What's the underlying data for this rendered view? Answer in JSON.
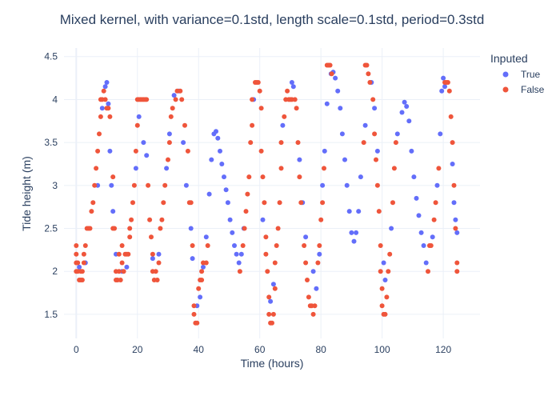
{
  "chart_data": {
    "type": "scatter",
    "title": "Mixed kernel, with variance=0.1std, length scale=0.1std, period=0.3std",
    "xlabel": "Time (hours)",
    "ylabel": "Tide height (m)",
    "xlim": [
      -4,
      132
    ],
    "ylim": [
      1.22,
      4.6
    ],
    "xticks": [
      0,
      20,
      40,
      60,
      80,
      100,
      120
    ],
    "yticks": [
      1.5,
      2,
      2.5,
      3,
      3.5,
      4,
      4.5
    ],
    "grid": true,
    "legend": {
      "title": "Inputed",
      "placement": "top-right"
    },
    "series": [
      {
        "name": "True",
        "color": "#636efa",
        "points": [
          [
            1.0,
            2.05
          ],
          [
            3.0,
            2.1
          ],
          [
            7.0,
            3.0
          ],
          [
            8.5,
            3.9
          ],
          [
            9.5,
            4.15
          ],
          [
            10.0,
            4.2
          ],
          [
            10.5,
            3.95
          ],
          [
            11.0,
            3.4
          ],
          [
            11.5,
            3.0
          ],
          [
            12.0,
            2.7
          ],
          [
            13.0,
            2.2
          ],
          [
            15.0,
            2.0
          ],
          [
            16.5,
            2.05
          ],
          [
            19.5,
            3.2
          ],
          [
            20.5,
            3.8
          ],
          [
            22.0,
            3.5
          ],
          [
            23.0,
            3.35
          ],
          [
            25.0,
            2.15
          ],
          [
            27.0,
            2.2
          ],
          [
            29.5,
            3.2
          ],
          [
            30.5,
            3.6
          ],
          [
            32.0,
            4.05
          ],
          [
            33.5,
            4.1
          ],
          [
            35.0,
            3.5
          ],
          [
            36.0,
            3.0
          ],
          [
            37.5,
            2.5
          ],
          [
            38.0,
            2.15
          ],
          [
            39.5,
            1.6
          ],
          [
            40.5,
            1.7
          ],
          [
            41.5,
            2.05
          ],
          [
            42.5,
            2.4
          ],
          [
            43.5,
            2.9
          ],
          [
            44.2,
            3.3
          ],
          [
            45.0,
            3.6
          ],
          [
            45.7,
            3.63
          ],
          [
            46.3,
            3.55
          ],
          [
            47.0,
            3.4
          ],
          [
            47.6,
            3.25
          ],
          [
            48.3,
            3.1
          ],
          [
            49.0,
            2.95
          ],
          [
            49.6,
            2.8
          ],
          [
            50.3,
            2.6
          ],
          [
            51.0,
            2.45
          ],
          [
            51.7,
            2.3
          ],
          [
            52.4,
            2.2
          ],
          [
            53.2,
            2.1
          ],
          [
            54.0,
            2.2
          ],
          [
            54.8,
            2.5
          ],
          [
            58.0,
            4.0
          ],
          [
            61.0,
            2.6
          ],
          [
            63.5,
            1.65
          ],
          [
            64.5,
            1.85
          ],
          [
            67.5,
            3.7
          ],
          [
            70.5,
            4.2
          ],
          [
            71.0,
            4.15
          ],
          [
            73.0,
            3.3
          ],
          [
            74.0,
            2.8
          ],
          [
            75.0,
            2.4
          ],
          [
            77.5,
            2.0
          ],
          [
            78.5,
            1.8
          ],
          [
            79.5,
            2.2
          ],
          [
            80.5,
            3.0
          ],
          [
            81.2,
            3.4
          ],
          [
            82.0,
            3.95
          ],
          [
            83.3,
            4.3
          ],
          [
            84.0,
            4.32
          ],
          [
            84.7,
            4.25
          ],
          [
            85.5,
            4.1
          ],
          [
            86.3,
            3.9
          ],
          [
            87.0,
            3.6
          ],
          [
            87.8,
            3.3
          ],
          [
            88.5,
            3.0
          ],
          [
            89.3,
            2.7
          ],
          [
            90.0,
            2.45
          ],
          [
            90.8,
            2.35
          ],
          [
            91.5,
            2.45
          ],
          [
            92.3,
            2.7
          ],
          [
            93.0,
            3.1
          ],
          [
            94.5,
            3.7
          ],
          [
            96.5,
            4.2
          ],
          [
            97.5,
            3.9
          ],
          [
            98.5,
            3.4
          ],
          [
            100.5,
            2.1
          ],
          [
            101.0,
            1.9
          ],
          [
            103.0,
            2.5
          ],
          [
            105.0,
            3.6
          ],
          [
            106.5,
            3.85
          ],
          [
            107.3,
            3.97
          ],
          [
            108.0,
            3.92
          ],
          [
            108.8,
            3.75
          ],
          [
            109.6,
            3.4
          ],
          [
            110.4,
            3.1
          ],
          [
            111.2,
            2.85
          ],
          [
            112.0,
            2.65
          ],
          [
            112.8,
            2.45
          ],
          [
            113.6,
            2.3
          ],
          [
            114.4,
            2.1
          ],
          [
            116.5,
            2.4
          ],
          [
            118.0,
            3.0
          ],
          [
            119.0,
            3.6
          ],
          [
            119.5,
            4.1
          ],
          [
            120.0,
            4.25
          ],
          [
            120.5,
            4.15
          ],
          [
            123.0,
            3.25
          ],
          [
            123.5,
            2.8
          ],
          [
            124.0,
            2.6
          ],
          [
            124.5,
            2.45
          ]
        ]
      },
      {
        "name": "False",
        "color": "#ef553b",
        "points": [
          [
            0.0,
            2.3
          ],
          [
            0.0,
            2.2
          ],
          [
            0.0,
            2.1
          ],
          [
            0.0,
            2.0
          ],
          [
            0.5,
            2.1
          ],
          [
            0.5,
            2.0
          ],
          [
            1.0,
            1.9
          ],
          [
            1.5,
            2.0
          ],
          [
            1.5,
            1.9
          ],
          [
            2.0,
            1.9
          ],
          [
            2.0,
            2.0
          ],
          [
            2.5,
            2.1
          ],
          [
            2.5,
            2.2
          ],
          [
            3.0,
            2.3
          ],
          [
            3.5,
            2.5
          ],
          [
            4.0,
            2.5
          ],
          [
            4.5,
            2.5
          ],
          [
            5.0,
            2.7
          ],
          [
            5.5,
            2.8
          ],
          [
            6.0,
            3.0
          ],
          [
            6.5,
            3.2
          ],
          [
            7.0,
            3.4
          ],
          [
            7.5,
            3.6
          ],
          [
            8.0,
            3.8
          ],
          [
            8.0,
            4.0
          ],
          [
            8.5,
            4.0
          ],
          [
            9.0,
            4.1
          ],
          [
            9.5,
            4.0
          ],
          [
            10.0,
            3.9
          ],
          [
            10.5,
            3.9
          ],
          [
            11.0,
            3.8
          ],
          [
            12.0,
            3.1
          ],
          [
            12.0,
            2.5
          ],
          [
            12.5,
            2.5
          ],
          [
            13.0,
            2.0
          ],
          [
            13.0,
            1.9
          ],
          [
            13.5,
            1.9
          ],
          [
            14.0,
            2.0
          ],
          [
            14.0,
            2.2
          ],
          [
            14.5,
            1.9
          ],
          [
            15.0,
            2.3
          ],
          [
            15.0,
            2.1
          ],
          [
            15.5,
            2.0
          ],
          [
            16.0,
            2.2
          ],
          [
            16.5,
            2.2
          ],
          [
            17.0,
            2.2
          ],
          [
            17.5,
            2.4
          ],
          [
            17.5,
            2.5
          ],
          [
            18.0,
            2.6
          ],
          [
            18.5,
            2.8
          ],
          [
            19.0,
            3.0
          ],
          [
            19.5,
            3.4
          ],
          [
            20.0,
            3.7
          ],
          [
            20.0,
            4.0
          ],
          [
            20.5,
            4.0
          ],
          [
            21.0,
            4.0
          ],
          [
            21.5,
            4.0
          ],
          [
            22.0,
            4.0
          ],
          [
            22.5,
            4.0
          ],
          [
            23.0,
            4.0
          ],
          [
            23.5,
            3.0
          ],
          [
            24.0,
            2.6
          ],
          [
            24.5,
            2.4
          ],
          [
            25.0,
            2.0
          ],
          [
            25.0,
            2.2
          ],
          [
            25.5,
            1.9
          ],
          [
            26.0,
            2.0
          ],
          [
            26.5,
            1.9
          ],
          [
            27.0,
            2.1
          ],
          [
            27.5,
            2.5
          ],
          [
            28.0,
            2.6
          ],
          [
            28.5,
            2.8
          ],
          [
            29.0,
            3.0
          ],
          [
            30.0,
            3.3
          ],
          [
            30.5,
            3.5
          ],
          [
            31.0,
            3.8
          ],
          [
            31.5,
            3.9
          ],
          [
            32.5,
            4.0
          ],
          [
            33.0,
            4.1
          ],
          [
            34.0,
            4.1
          ],
          [
            34.5,
            4.0
          ],
          [
            35.5,
            3.7
          ],
          [
            36.5,
            3.4
          ],
          [
            37.0,
            2.8
          ],
          [
            37.5,
            2.8
          ],
          [
            38.0,
            2.3
          ],
          [
            38.5,
            1.6
          ],
          [
            38.5,
            1.5
          ],
          [
            39.0,
            1.4
          ],
          [
            39.5,
            1.4
          ],
          [
            40.0,
            1.8
          ],
          [
            40.5,
            1.9
          ],
          [
            41.0,
            2.0
          ],
          [
            41.0,
            1.9
          ],
          [
            41.5,
            2.1
          ],
          [
            42.5,
            2.1
          ],
          [
            43.0,
            2.3
          ],
          [
            53.5,
            2.0
          ],
          [
            54.5,
            2.3
          ],
          [
            55.0,
            2.5
          ],
          [
            55.5,
            2.7
          ],
          [
            56.0,
            2.9
          ],
          [
            56.5,
            3.1
          ],
          [
            57.0,
            3.5
          ],
          [
            57.5,
            3.7
          ],
          [
            57.5,
            4.0
          ],
          [
            58.5,
            4.2
          ],
          [
            59.0,
            4.2
          ],
          [
            59.5,
            4.2
          ],
          [
            60.0,
            4.1
          ],
          [
            60.5,
            3.9
          ],
          [
            60.5,
            3.4
          ],
          [
            61.0,
            3.1
          ],
          [
            61.5,
            2.8
          ],
          [
            62.0,
            2.4
          ],
          [
            62.0,
            2.2
          ],
          [
            62.5,
            2.0
          ],
          [
            63.0,
            1.7
          ],
          [
            63.0,
            1.5
          ],
          [
            63.5,
            1.4
          ],
          [
            64.0,
            1.4
          ],
          [
            64.5,
            1.5
          ],
          [
            65.0,
            1.8
          ],
          [
            65.0,
            2.1
          ],
          [
            65.5,
            2.3
          ],
          [
            66.0,
            2.5
          ],
          [
            66.5,
            2.8
          ],
          [
            67.0,
            3.2
          ],
          [
            67.0,
            3.5
          ],
          [
            68.0,
            3.8
          ],
          [
            68.5,
            4.0
          ],
          [
            69.0,
            4.1
          ],
          [
            69.5,
            4.0
          ],
          [
            70.0,
            4.0
          ],
          [
            70.5,
            4.0
          ],
          [
            71.5,
            4.0
          ],
          [
            72.0,
            3.9
          ],
          [
            72.5,
            3.5
          ],
          [
            73.0,
            3.1
          ],
          [
            73.5,
            2.8
          ],
          [
            74.5,
            2.3
          ],
          [
            75.0,
            2.1
          ],
          [
            75.5,
            1.9
          ],
          [
            76.0,
            1.7
          ],
          [
            76.5,
            1.6
          ],
          [
            77.0,
            1.6
          ],
          [
            77.5,
            1.5
          ],
          [
            78.0,
            1.6
          ],
          [
            79.0,
            2.1
          ],
          [
            79.5,
            2.3
          ],
          [
            80.0,
            2.6
          ],
          [
            80.5,
            2.8
          ],
          [
            81.0,
            3.2
          ],
          [
            82.0,
            4.4
          ],
          [
            82.5,
            4.4
          ],
          [
            83.0,
            4.4
          ],
          [
            83.5,
            4.3
          ],
          [
            94.0,
            3.5
          ],
          [
            94.5,
            4.4
          ],
          [
            95.0,
            4.4
          ],
          [
            95.5,
            4.3
          ],
          [
            96.0,
            4.2
          ],
          [
            97.0,
            4.0
          ],
          [
            97.5,
            3.6
          ],
          [
            98.0,
            3.3
          ],
          [
            98.5,
            3.0
          ],
          [
            99.0,
            2.7
          ],
          [
            99.5,
            2.3
          ],
          [
            99.5,
            2.0
          ],
          [
            100.0,
            1.8
          ],
          [
            100.0,
            1.6
          ],
          [
            100.5,
            1.5
          ],
          [
            101.0,
            1.5
          ],
          [
            101.5,
            1.7
          ],
          [
            102.0,
            2.0
          ],
          [
            102.5,
            2.2
          ],
          [
            103.5,
            2.8
          ],
          [
            104.0,
            3.2
          ],
          [
            104.5,
            3.5
          ],
          [
            115.0,
            2.0
          ],
          [
            115.5,
            2.3
          ],
          [
            116.0,
            2.3
          ],
          [
            117.0,
            2.6
          ],
          [
            117.5,
            2.8
          ],
          [
            118.5,
            3.2
          ],
          [
            120.5,
            4.2
          ],
          [
            121.0,
            4.2
          ],
          [
            121.5,
            4.2
          ],
          [
            122.0,
            4.1
          ],
          [
            122.5,
            3.8
          ],
          [
            123.0,
            3.5
          ],
          [
            123.5,
            3.0
          ],
          [
            124.0,
            2.5
          ],
          [
            124.5,
            2.1
          ],
          [
            124.5,
            2.0
          ]
        ]
      }
    ]
  }
}
